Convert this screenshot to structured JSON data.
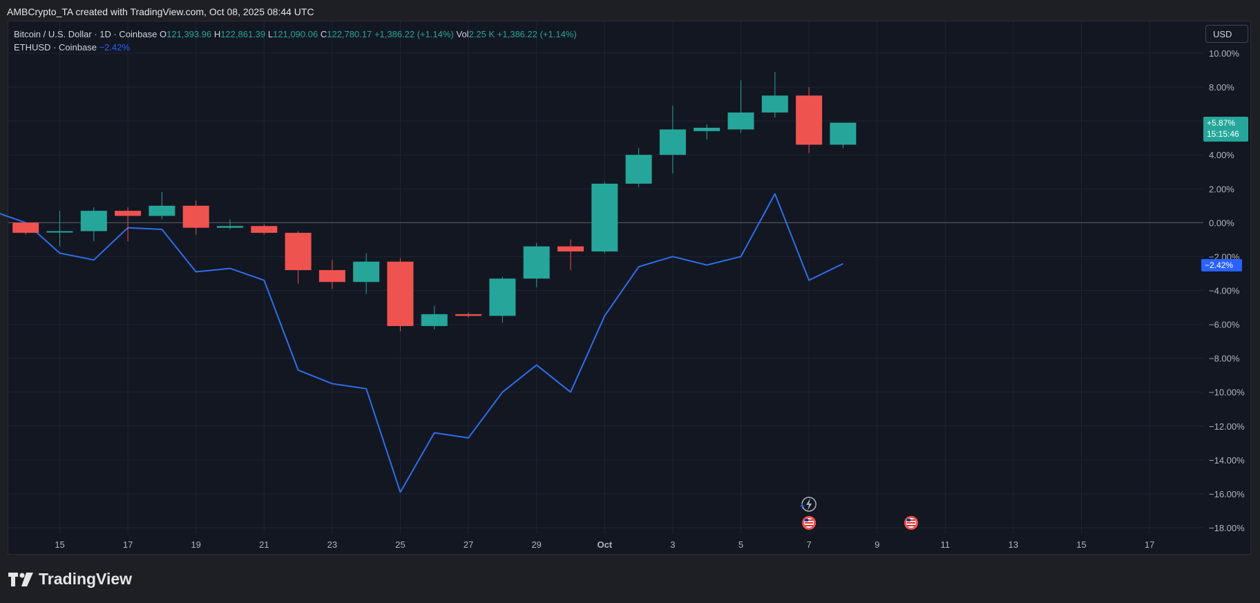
{
  "caption": "AMBCrypto_TA created with TradingView.com, Oct 08, 2025 08:44 UTC",
  "legend": {
    "symbol": "Bitcoin / U.S. Dollar · 1D · Coinbase",
    "o_label": "O",
    "o_value": "121,393.96",
    "h_label": "H",
    "h_value": "122,861.39",
    "l_label": "L",
    "l_value": "121,090.06",
    "c_label": "C",
    "c_value": "122,780.17",
    "change": "+1,386.22 (+1.14%)",
    "vol_label": "Vol",
    "vol_value": "2.25 K",
    "vol_change": "+1,386.22 (+1.14%)",
    "compare_symbol": "ETHUSD · Coinbase",
    "compare_value": "−2.42%"
  },
  "currency_button": "USD",
  "price_tags": {
    "btc_percent": "+5.87%",
    "btc_countdown": "15:15:46",
    "eth_percent": "−2.42%"
  },
  "footer": {
    "brand": "TradingView"
  },
  "colors": {
    "up": "#26a69a",
    "down": "#ef5350",
    "eth_line": "#2f6fec",
    "background": "#131722",
    "grid": "#1f2433"
  },
  "chart_data": {
    "type": "candlestick",
    "y_axis": {
      "min": -18,
      "max": 10,
      "unit": "%",
      "ticks": [
        10,
        8,
        6,
        4,
        2,
        0,
        -2,
        -4,
        -6,
        -8,
        -10,
        -12,
        -14,
        -16,
        -18
      ],
      "tick_labels": [
        "10.00%",
        "8.00%",
        "6.00%",
        "4.00%",
        "2.00%",
        "0.00%",
        "−2.00%",
        "−4.00%",
        "−6.00%",
        "−8.00%",
        "−10.00%",
        "−12.00%",
        "−14.00%",
        "−16.00%",
        "−18.00%"
      ]
    },
    "x_axis": {
      "tick_labels": [
        "15",
        "17",
        "19",
        "21",
        "23",
        "25",
        "27",
        "29",
        "Oct",
        "3",
        "5",
        "7",
        "9",
        "11",
        "13",
        "15",
        "17"
      ],
      "tick_days": [
        15,
        17,
        19,
        21,
        23,
        25,
        27,
        29,
        31,
        33,
        35,
        37,
        39,
        41,
        43,
        45,
        47
      ]
    },
    "candles": [
      {
        "day": 14,
        "o": 0.0,
        "h": 0.0,
        "l": -0.7,
        "c": -0.6
      },
      {
        "day": 15,
        "o": -0.5,
        "h": 0.7,
        "l": -1.4,
        "c": -0.5
      },
      {
        "day": 16,
        "o": -0.5,
        "h": 0.9,
        "l": -1.1,
        "c": 0.7
      },
      {
        "day": 17,
        "o": 0.7,
        "h": 0.9,
        "l": -1.1,
        "c": 0.4
      },
      {
        "day": 18,
        "o": 0.4,
        "h": 1.8,
        "l": 0.2,
        "c": 1.0
      },
      {
        "day": 19,
        "o": 1.0,
        "h": 1.3,
        "l": -0.7,
        "c": -0.3
      },
      {
        "day": 20,
        "o": -0.3,
        "h": 0.2,
        "l": -0.4,
        "c": -0.2
      },
      {
        "day": 21,
        "o": -0.2,
        "h": -0.1,
        "l": -0.7,
        "c": -0.6
      },
      {
        "day": 22,
        "o": -0.6,
        "h": -0.5,
        "l": -3.6,
        "c": -2.8
      },
      {
        "day": 23,
        "o": -2.8,
        "h": -2.2,
        "l": -3.9,
        "c": -3.5
      },
      {
        "day": 24,
        "o": -3.5,
        "h": -1.8,
        "l": -4.2,
        "c": -2.3
      },
      {
        "day": 25,
        "o": -2.3,
        "h": -2.1,
        "l": -6.4,
        "c": -6.1
      },
      {
        "day": 26,
        "o": -6.1,
        "h": -4.9,
        "l": -6.3,
        "c": -5.4
      },
      {
        "day": 27,
        "o": -5.4,
        "h": -5.3,
        "l": -5.6,
        "c": -5.5
      },
      {
        "day": 28,
        "o": -5.5,
        "h": -3.2,
        "l": -5.9,
        "c": -3.3
      },
      {
        "day": 29,
        "o": -3.3,
        "h": -1.2,
        "l": -3.8,
        "c": -1.4
      },
      {
        "day": 30,
        "o": -1.4,
        "h": -1.0,
        "l": -2.8,
        "c": -1.7
      },
      {
        "day": 31,
        "o": -1.7,
        "h": 2.4,
        "l": -1.8,
        "c": 2.3
      },
      {
        "day": 32,
        "o": 2.3,
        "h": 4.4,
        "l": 2.1,
        "c": 4.0
      },
      {
        "day": 33,
        "o": 4.0,
        "h": 6.9,
        "l": 2.9,
        "c": 5.5
      },
      {
        "day": 34,
        "o": 5.4,
        "h": 5.8,
        "l": 4.9,
        "c": 5.6
      },
      {
        "day": 35,
        "o": 5.5,
        "h": 8.4,
        "l": 5.3,
        "c": 6.5
      },
      {
        "day": 36,
        "o": 6.5,
        "h": 8.9,
        "l": 6.2,
        "c": 7.5
      },
      {
        "day": 37,
        "o": 7.5,
        "h": 8.0,
        "l": 4.1,
        "c": 4.6
      },
      {
        "day": 38,
        "o": 4.6,
        "h": 5.9,
        "l": 4.4,
        "c": 5.9
      }
    ],
    "series": [
      {
        "name": "ETHUSD",
        "type": "line",
        "points": [
          {
            "day": 13,
            "v": 0.7
          },
          {
            "day": 14,
            "v": 0.0
          },
          {
            "day": 15,
            "v": -1.8
          },
          {
            "day": 16,
            "v": -2.2
          },
          {
            "day": 17,
            "v": -0.3
          },
          {
            "day": 18,
            "v": -0.4
          },
          {
            "day": 19,
            "v": -2.9
          },
          {
            "day": 20,
            "v": -2.7
          },
          {
            "day": 21,
            "v": -3.4
          },
          {
            "day": 22,
            "v": -8.7
          },
          {
            "day": 23,
            "v": -9.5
          },
          {
            "day": 24,
            "v": -9.8
          },
          {
            "day": 25,
            "v": -15.9
          },
          {
            "day": 26,
            "v": -12.4
          },
          {
            "day": 27,
            "v": -12.7
          },
          {
            "day": 28,
            "v": -10.0
          },
          {
            "day": 29,
            "v": -8.4
          },
          {
            "day": 30,
            "v": -10.0
          },
          {
            "day": 31,
            "v": -5.5
          },
          {
            "day": 32,
            "v": -2.6
          },
          {
            "day": 33,
            "v": -2.0
          },
          {
            "day": 34,
            "v": -2.5
          },
          {
            "day": 35,
            "v": -2.0
          },
          {
            "day": 36,
            "v": 1.7
          },
          {
            "day": 37,
            "v": -3.4
          },
          {
            "day": 38,
            "v": -2.42
          }
        ]
      }
    ],
    "zero_line": 0,
    "grid": true,
    "event_markers": [
      {
        "day": 37,
        "icon": "lightning-icon"
      },
      {
        "day": 37,
        "icon": "us-flag-icon"
      },
      {
        "day": 40,
        "icon": "us-flag-icon"
      }
    ]
  }
}
